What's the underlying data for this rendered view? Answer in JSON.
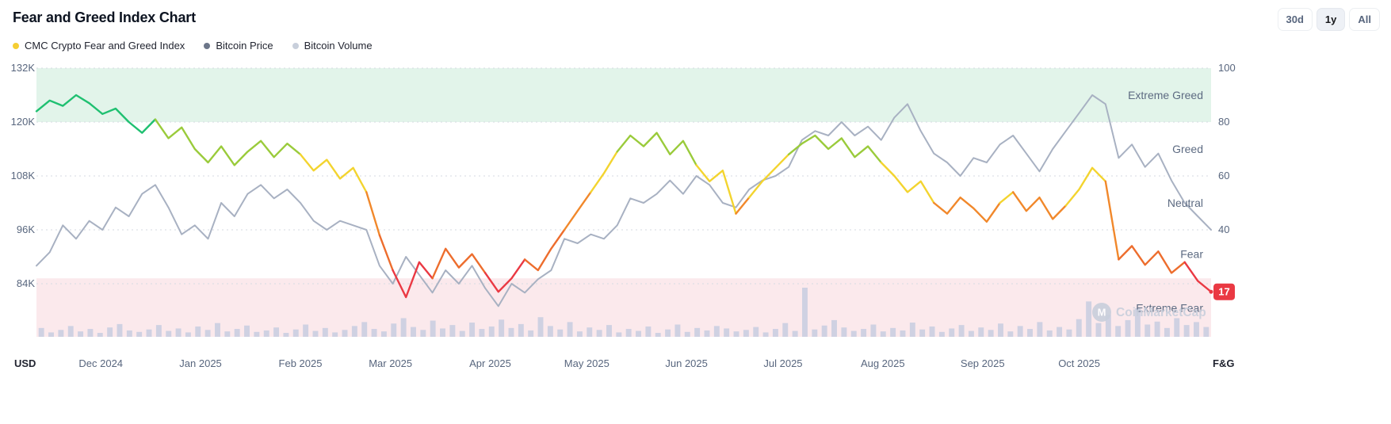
{
  "header": {
    "title": "Fear and Greed Index Chart",
    "range_buttons": [
      {
        "label": "30d",
        "active": false
      },
      {
        "label": "1y",
        "active": true
      },
      {
        "label": "All",
        "active": false
      }
    ]
  },
  "legend": [
    {
      "label": "CMC Crypto Fear and Greed Index",
      "color": "#f5ce33"
    },
    {
      "label": "Bitcoin Price",
      "color": "#6c7689"
    },
    {
      "label": "Bitcoin Volume",
      "color": "#c8cfdb"
    }
  ],
  "watermark": {
    "text": "CoinMarketCap",
    "logo_letter": "M",
    "color": "#c9cfdc"
  },
  "chart_data": {
    "type": "line",
    "title": "Fear and Greed Index Chart",
    "grid": "dotted-horizontal",
    "left_axis": {
      "unit": "USD",
      "labels": [
        "132K",
        "120K",
        "108K",
        "96K",
        "84K"
      ],
      "label_values_k": [
        132,
        120,
        108,
        96,
        84
      ],
      "range_k": [
        76,
        132
      ]
    },
    "right_axis": {
      "unit": "F&G",
      "labels": [
        "100",
        "80",
        "60",
        "40"
      ],
      "label_values": [
        100,
        80,
        60,
        40
      ],
      "range": [
        0,
        100
      ]
    },
    "x_months": [
      {
        "label": "Dec 2024",
        "t": 0.0548
      },
      {
        "label": "Jan 2025",
        "t": 0.1397
      },
      {
        "label": "Feb 2025",
        "t": 0.2247
      },
      {
        "label": "Mar 2025",
        "t": 0.3014
      },
      {
        "label": "Apr 2025",
        "t": 0.3863
      },
      {
        "label": "May 2025",
        "t": 0.4685
      },
      {
        "label": "Jun 2025",
        "t": 0.5534
      },
      {
        "label": "Jul 2025",
        "t": 0.6356
      },
      {
        "label": "Aug 2025",
        "t": 0.7205
      },
      {
        "label": "Sep 2025",
        "t": 0.8055
      },
      {
        "label": "Oct 2025",
        "t": 0.8877
      }
    ],
    "zones": [
      {
        "label": "Extreme Greed",
        "range": [
          80,
          100
        ],
        "band_color": "#e2f4ea"
      },
      {
        "label": "Greed",
        "range": [
          60,
          80
        ],
        "band_color": null
      },
      {
        "label": "Neutral",
        "range": [
          40,
          60
        ],
        "band_color": null
      },
      {
        "label": "Fear",
        "range": [
          22,
          40
        ],
        "band_color": null
      },
      {
        "label": "Extreme Fear",
        "range": [
          0,
          22
        ],
        "band_color": "#fbe9ec"
      }
    ],
    "fg_color_scale": [
      {
        "min": 78,
        "color": "#1fc071"
      },
      {
        "min": 66,
        "color": "#9acb3b"
      },
      {
        "min": 52,
        "color": "#f3d42f"
      },
      {
        "min": 38,
        "color": "#f1882b"
      },
      {
        "min": 26,
        "color": "#ed6d2d"
      },
      {
        "min": 0,
        "color": "#ea3943"
      }
    ],
    "series": [
      {
        "name": "CMC Crypto Fear and Greed Index",
        "axis": "right",
        "style": "multicolor-line",
        "values": [
          84,
          88,
          86,
          90,
          87,
          83,
          85,
          80,
          76,
          81,
          74,
          78,
          70,
          65,
          71,
          64,
          69,
          73,
          67,
          72,
          68,
          62,
          66,
          59,
          63,
          54,
          38,
          25,
          15,
          28,
          22,
          33,
          26,
          31,
          24,
          17,
          22,
          29,
          25,
          33,
          40,
          47,
          54,
          61,
          69,
          75,
          71,
          76,
          68,
          73,
          64,
          58,
          62,
          46,
          52,
          58,
          63,
          68,
          72,
          75,
          70,
          74,
          67,
          71,
          65,
          60,
          54,
          58,
          50,
          46,
          52,
          48,
          43,
          50,
          54,
          47,
          52,
          44,
          49,
          55,
          63,
          58,
          29,
          34,
          27,
          32,
          24,
          28,
          21,
          17
        ]
      },
      {
        "name": "Bitcoin Price",
        "axis": "left",
        "style": "line",
        "color": "#a8b1c2",
        "values_k_usd": [
          88,
          91,
          97,
          94,
          98,
          96,
          101,
          99,
          104,
          106,
          101,
          95,
          97,
          94,
          102,
          99,
          104,
          106,
          103,
          105,
          102,
          98,
          96,
          98,
          97,
          96,
          88,
          84,
          90,
          86,
          82,
          87,
          84,
          88,
          83,
          79,
          84,
          82,
          85,
          87,
          94,
          93,
          95,
          94,
          97,
          103,
          102,
          104,
          107,
          104,
          108,
          106,
          102,
          101,
          105,
          107,
          108,
          110,
          116,
          118,
          117,
          120,
          117,
          119,
          116,
          121,
          124,
          118,
          113,
          111,
          108,
          112,
          111,
          115,
          117,
          113,
          109,
          114,
          118,
          122,
          126,
          124,
          112,
          115,
          110,
          113,
          107,
          102,
          99,
          96
        ]
      },
      {
        "name": "Bitcoin Volume",
        "axis": "none",
        "style": "bar",
        "color": "#cacee1",
        "values_relative": [
          18,
          9,
          14,
          22,
          11,
          16,
          8,
          19,
          26,
          13,
          10,
          15,
          24,
          12,
          17,
          9,
          21,
          14,
          28,
          11,
          16,
          23,
          10,
          13,
          19,
          8,
          15,
          25,
          12,
          18,
          9,
          14,
          22,
          30,
          16,
          11,
          27,
          38,
          20,
          14,
          33,
          17,
          24,
          12,
          29,
          16,
          21,
          35,
          18,
          26,
          13,
          40,
          22,
          15,
          30,
          11,
          19,
          14,
          24,
          9,
          16,
          12,
          21,
          8,
          15,
          25,
          10,
          18,
          13,
          22,
          17,
          11,
          14,
          20,
          9,
          16,
          28,
          12,
          100,
          15,
          23,
          34,
          19,
          12,
          16,
          25,
          11,
          18,
          13,
          29,
          15,
          21,
          10,
          17,
          24,
          12,
          19,
          14,
          27,
          11,
          22,
          16,
          30,
          13,
          20,
          15,
          36,
          72,
          28,
          45,
          22,
          34,
          58,
          25,
          31,
          18,
          38,
          24,
          30,
          20
        ]
      }
    ],
    "last_value": {
      "series": "CMC Crypto Fear and Greed Index",
      "value": 17,
      "badge_color": "#ea3943",
      "badge_text_color": "#ffffff"
    }
  }
}
